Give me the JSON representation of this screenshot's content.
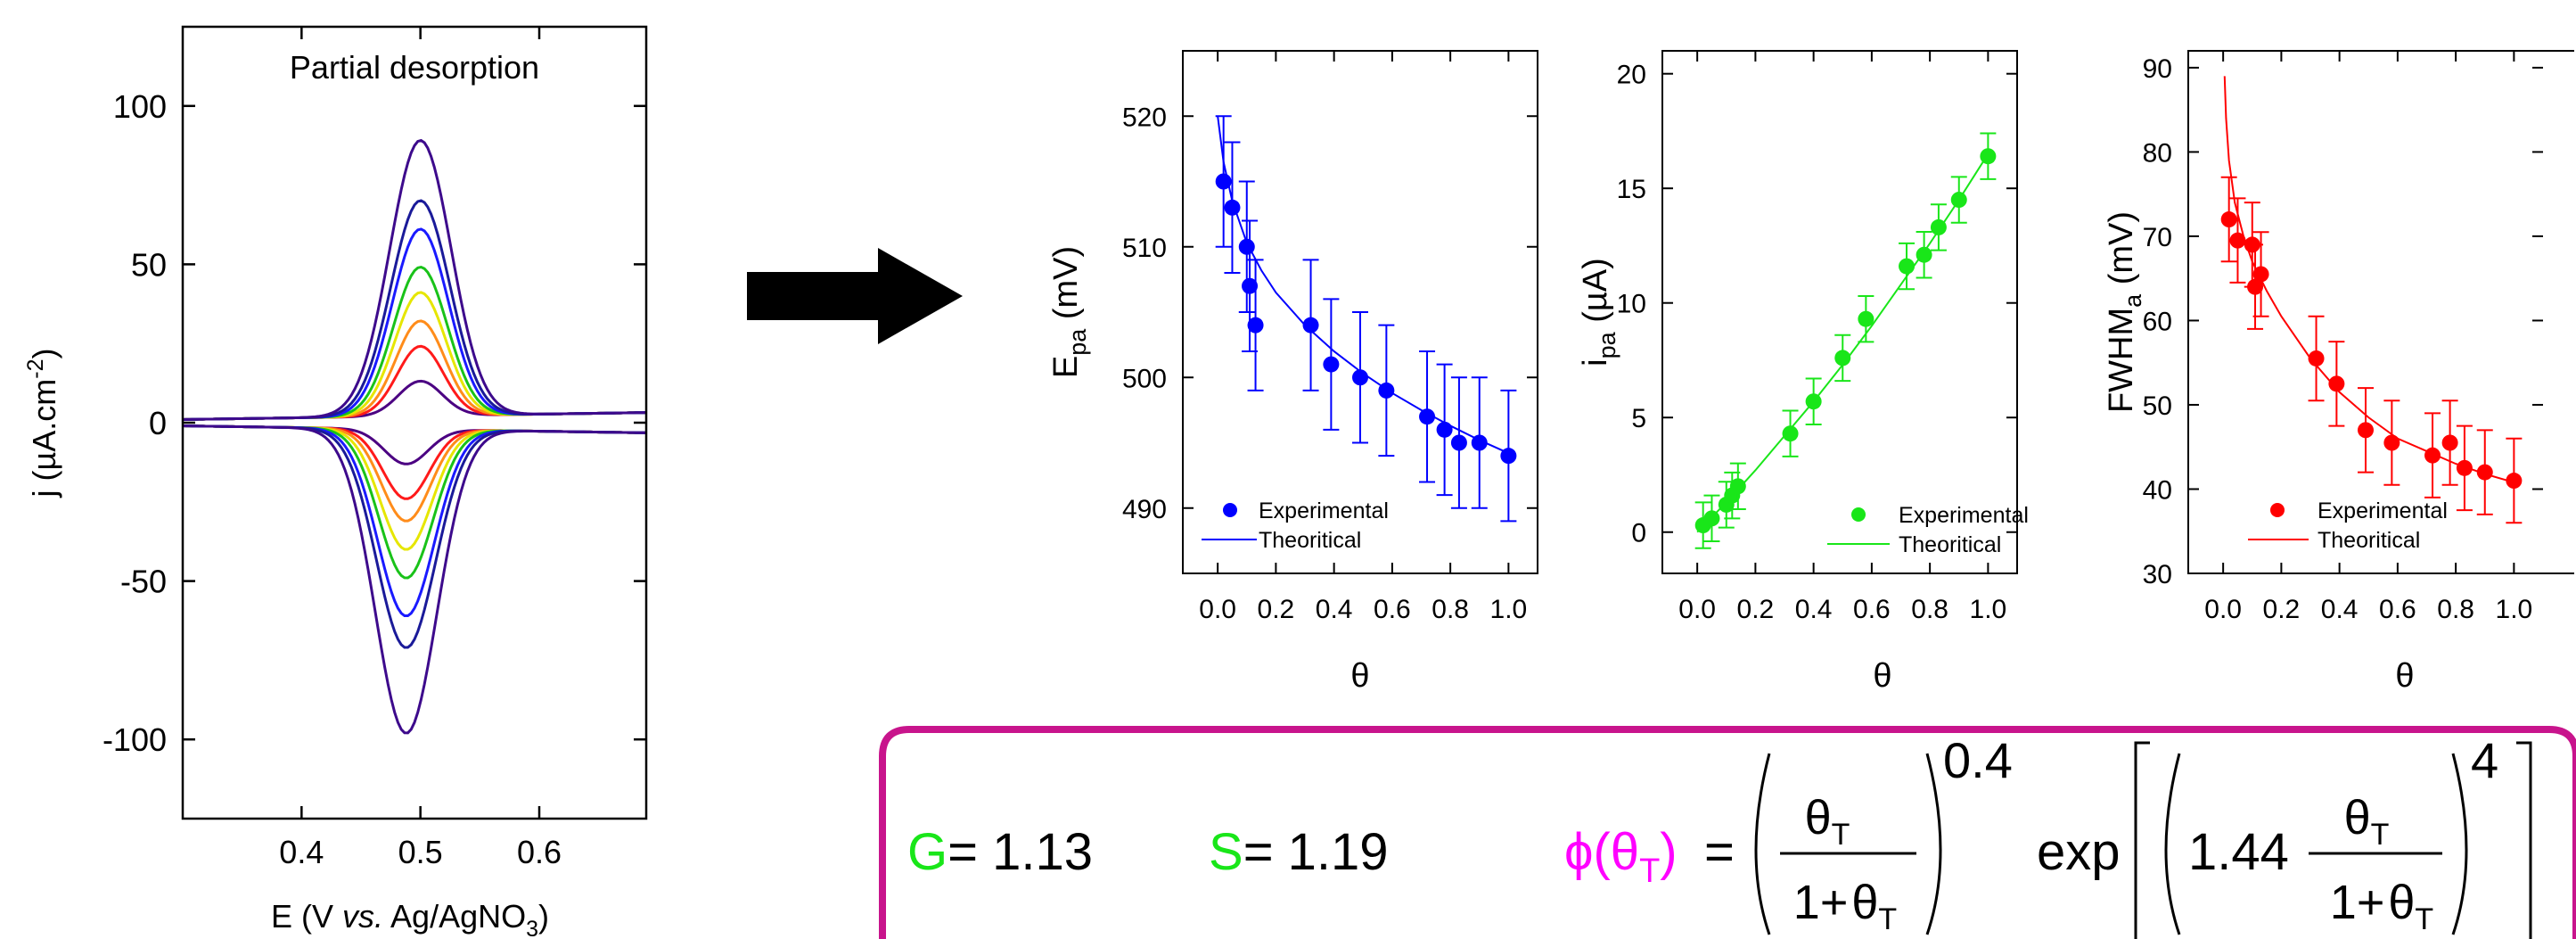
{
  "chart_data": [
    {
      "type": "line",
      "panel": "cv",
      "title": "Partial desorption",
      "xlabel": "E (V vs. Ag/AgNO3)",
      "ylabel": "j (µA.cm-2)",
      "xlim": [
        0.3,
        0.69
      ],
      "ylim": [
        -125,
        125
      ],
      "xticks": [
        0.4,
        0.5,
        0.6
      ],
      "yticks": [
        -100,
        -50,
        0,
        50,
        100
      ],
      "peak_potential": 0.5,
      "series": [
        {
          "color": "#4b0082",
          "peak_anodic": 11,
          "peak_cathodic": -11
        },
        {
          "color": "#ff1a1a",
          "peak_anodic": 22,
          "peak_cathodic": -22
        },
        {
          "color": "#ff8c1a",
          "peak_anodic": 30,
          "peak_cathodic": -29
        },
        {
          "color": "#e6e600",
          "peak_anodic": 39,
          "peak_cathodic": -38
        },
        {
          "color": "#19c219",
          "peak_anodic": 47,
          "peak_cathodic": -47
        },
        {
          "color": "#1a1aff",
          "peak_anodic": 59,
          "peak_cathodic": -59
        },
        {
          "color": "#1a1a99",
          "peak_anodic": 68,
          "peak_cathodic": -69
        },
        {
          "color": "#3d0a8c",
          "peak_anodic": 87,
          "peak_cathodic": -96
        }
      ]
    },
    {
      "type": "scatter",
      "panel": "epa",
      "xlabel": "θ",
      "ylabel_main": "E",
      "ylabel_sub": "pa",
      "ylabel_unit": "(mV)",
      "xlim": [
        -0.12,
        1.1
      ],
      "ylim": [
        485,
        525
      ],
      "xticks": [
        0.0,
        0.2,
        0.4,
        0.6,
        0.8,
        1.0
      ],
      "yticks": [
        490,
        500,
        510,
        520
      ],
      "color": "#0000ff",
      "legend": {
        "experimental": "Experimental",
        "theoretical": "Theoritical"
      },
      "experimental": {
        "x": [
          0.02,
          0.05,
          0.1,
          0.11,
          0.13,
          0.32,
          0.39,
          0.49,
          0.58,
          0.72,
          0.78,
          0.83,
          0.9,
          1.0
        ],
        "y": [
          515,
          513,
          510,
          507,
          504,
          504,
          501,
          500,
          499,
          497,
          496,
          495,
          495,
          494
        ],
        "err": [
          5,
          5,
          5,
          5,
          5,
          5,
          5,
          5,
          5,
          5,
          5,
          5,
          5,
          5
        ]
      },
      "theoretical": {
        "x": [
          0.0,
          0.02,
          0.05,
          0.1,
          0.15,
          0.2,
          0.3,
          0.4,
          0.5,
          0.6,
          0.7,
          0.8,
          0.9,
          1.0
        ],
        "y": [
          520,
          516.5,
          513.5,
          510.3,
          508.2,
          506.5,
          504.0,
          502.0,
          500.3,
          498.8,
          497.5,
          496.3,
          495.2,
          494.2
        ]
      }
    },
    {
      "type": "scatter",
      "panel": "ipa",
      "xlabel": "θ",
      "ylabel_main": "i",
      "ylabel_sub": "pa",
      "ylabel_unit": "(µA)",
      "xlim": [
        -0.12,
        1.1
      ],
      "ylim": [
        -1.8,
        21
      ],
      "xticks": [
        0.0,
        0.2,
        0.4,
        0.6,
        0.8,
        1.0
      ],
      "yticks": [
        0,
        5,
        10,
        15,
        20
      ],
      "color": "#19e619",
      "legend": {
        "experimental": "Experimental",
        "theoretical": "Theoritical"
      },
      "experimental": {
        "x": [
          0.02,
          0.05,
          0.1,
          0.12,
          0.14,
          0.32,
          0.4,
          0.5,
          0.58,
          0.72,
          0.78,
          0.83,
          0.9,
          1.0
        ],
        "y": [
          0.3,
          0.6,
          1.2,
          1.6,
          2.0,
          4.3,
          5.7,
          7.6,
          9.3,
          11.6,
          12.1,
          13.3,
          14.5,
          16.4
        ],
        "err": [
          1.0,
          1.0,
          1.0,
          1.0,
          1.0,
          1.0,
          1.0,
          1.0,
          1.0,
          1.0,
          1.0,
          1.0,
          1.0,
          1.0
        ]
      },
      "theoretical": {
        "x": [
          0.0,
          0.1,
          0.2,
          0.3,
          0.4,
          0.5,
          0.6,
          0.7,
          0.8,
          0.9,
          1.0
        ],
        "y": [
          0.0,
          1.3,
          2.7,
          4.2,
          5.7,
          7.3,
          9.0,
          10.8,
          12.6,
          14.5,
          16.5
        ]
      }
    },
    {
      "type": "scatter",
      "panel": "fwhm",
      "xlabel": "θ",
      "ylabel_main": "FWHM",
      "ylabel_sub": "a",
      "ylabel_unit": "(mV)",
      "xlim": [
        -0.12,
        1.1
      ],
      "ylim": [
        30,
        92
      ],
      "xticks": [
        0.0,
        0.2,
        0.4,
        0.6,
        0.8,
        1.0
      ],
      "yticks": [
        30,
        40,
        50,
        60,
        70,
        80,
        90
      ],
      "color": "#ff0000",
      "legend": {
        "experimental": "Experimental",
        "theoretical": "Theoritical"
      },
      "experimental": {
        "x": [
          0.02,
          0.05,
          0.1,
          0.11,
          0.13,
          0.32,
          0.39,
          0.49,
          0.58,
          0.72,
          0.78,
          0.83,
          0.9,
          1.0
        ],
        "y": [
          72,
          69.5,
          69,
          64,
          65.5,
          55.5,
          52.5,
          47,
          45.5,
          44,
          45.5,
          42.5,
          42,
          41
        ],
        "err": [
          5,
          5,
          5,
          5,
          5,
          5,
          5,
          5,
          5,
          5,
          5,
          5,
          5,
          5
        ]
      },
      "theoretical": {
        "x": [
          0.005,
          0.01,
          0.02,
          0.04,
          0.07,
          0.1,
          0.15,
          0.2,
          0.3,
          0.4,
          0.5,
          0.6,
          0.7,
          0.8,
          0.9,
          1.0
        ],
        "y": [
          89,
          84,
          79,
          74,
          70,
          67,
          63.5,
          60.5,
          55.5,
          51.5,
          48.5,
          46,
          44.5,
          43,
          41.8,
          40.8
        ]
      }
    }
  ],
  "equation_box": {
    "border_color": "#c8148c",
    "g_symbol": "G",
    "g_value": "= 1.13",
    "s_symbol": "S",
    "s_value": "= 1.19",
    "symbol_color": "#19e619",
    "phi_symbol": "ϕ(θ",
    "phi_sub": "T",
    "phi_close": ")",
    "phi_color": "#ff00ff",
    "equals": "=",
    "theta": "θ",
    "theta_sub": "T",
    "one_plus": "1+",
    "power_1": "0.4",
    "exp_label": "exp",
    "coef": "1.44",
    "power_2": "4"
  }
}
